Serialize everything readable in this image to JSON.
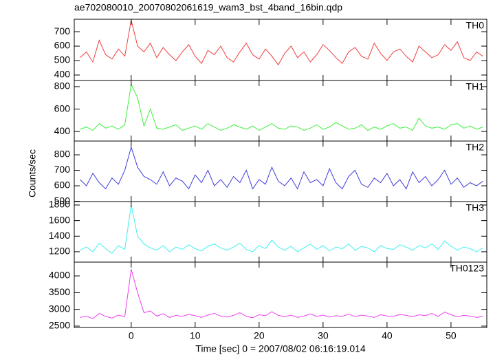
{
  "chart_data": [
    {
      "type": "line",
      "title": "ae702080010_20070802061619_wam3_bst_4band_16bin.qdp",
      "x": [
        -8,
        -7,
        -6,
        -5,
        -4,
        -3,
        -2,
        -1,
        0,
        1,
        2,
        3,
        4,
        5,
        6,
        7,
        8,
        9,
        10,
        11,
        12,
        13,
        14,
        15,
        16,
        17,
        18,
        19,
        20,
        21,
        22,
        23,
        24,
        25,
        26,
        27,
        28,
        29,
        30,
        31,
        32,
        33,
        34,
        35,
        36,
        37,
        38,
        39,
        40,
        41,
        42,
        43,
        44,
        45,
        46,
        47,
        48,
        49,
        50,
        51,
        52,
        53,
        54,
        55
      ],
      "series": [
        {
          "name": "TH0",
          "color": "#f03c3c",
          "values": [
            520,
            560,
            490,
            640,
            540,
            510,
            580,
            530,
            780,
            600,
            560,
            620,
            520,
            590,
            540,
            500,
            560,
            610,
            530,
            480,
            570,
            540,
            600,
            520,
            490,
            560,
            620,
            540,
            510,
            580,
            530,
            470,
            550,
            600,
            520,
            560,
            490,
            540,
            610,
            570,
            520,
            480,
            560,
            590,
            530,
            510,
            620,
            550,
            500,
            560,
            580,
            530,
            490,
            600,
            560,
            520,
            540,
            610,
            570,
            630,
            520,
            500,
            560,
            530
          ]
        }
      ],
      "xlim": [
        -8.9,
        55.6
      ],
      "xticks": [
        0,
        10,
        20,
        30,
        40,
        50
      ],
      "ylim": [
        362,
        786
      ],
      "yticks": [
        400,
        500,
        600,
        700
      ]
    },
    {
      "type": "line",
      "x": [
        -8,
        -7,
        -6,
        -5,
        -4,
        -3,
        -2,
        -1,
        0,
        1,
        2,
        3,
        4,
        5,
        6,
        7,
        8,
        9,
        10,
        11,
        12,
        13,
        14,
        15,
        16,
        17,
        18,
        19,
        20,
        21,
        22,
        23,
        24,
        25,
        26,
        27,
        28,
        29,
        30,
        31,
        32,
        33,
        34,
        35,
        36,
        37,
        38,
        39,
        40,
        41,
        42,
        43,
        44,
        45,
        46,
        47,
        48,
        49,
        50,
        51,
        52,
        53,
        54,
        55
      ],
      "series": [
        {
          "name": "TH1",
          "color": "#3cf03c",
          "values": [
            420,
            440,
            410,
            470,
            430,
            450,
            420,
            460,
            820,
            700,
            450,
            600,
            430,
            420,
            440,
            460,
            410,
            430,
            450,
            420,
            470,
            440,
            410,
            430,
            460,
            440,
            420,
            450,
            410,
            440,
            470,
            430,
            420,
            450,
            440,
            410,
            430,
            460,
            420,
            440,
            480,
            450,
            420,
            430,
            460,
            410,
            440,
            420,
            450,
            470,
            430,
            440,
            410,
            520,
            450,
            430,
            440,
            420,
            460,
            470,
            430,
            450,
            420,
            440
          ]
        }
      ],
      "xlim": [
        -8.9,
        55.6
      ],
      "xticks": [
        0,
        10,
        20,
        30,
        40,
        50
      ],
      "ylim": [
        315,
        855
      ],
      "yticks": [
        400,
        600,
        800
      ]
    },
    {
      "type": "line",
      "ylabel": "Counts/sec",
      "x": [
        -8,
        -7,
        -6,
        -5,
        -4,
        -3,
        -2,
        -1,
        0,
        1,
        2,
        3,
        4,
        5,
        6,
        7,
        8,
        9,
        10,
        11,
        12,
        13,
        14,
        15,
        16,
        17,
        18,
        19,
        20,
        21,
        22,
        23,
        24,
        25,
        26,
        27,
        28,
        29,
        30,
        31,
        32,
        33,
        34,
        35,
        36,
        37,
        38,
        39,
        40,
        41,
        42,
        43,
        44,
        45,
        46,
        47,
        48,
        49,
        50,
        51,
        52,
        53,
        54,
        55
      ],
      "series": [
        {
          "name": "TH2",
          "color": "#3c3cdc",
          "values": [
            640,
            600,
            680,
            620,
            580,
            650,
            610,
            700,
            850,
            720,
            660,
            640,
            610,
            690,
            600,
            650,
            630,
            580,
            670,
            620,
            700,
            600,
            640,
            590,
            660,
            620,
            700,
            580,
            640,
            610,
            720,
            630,
            600,
            650,
            580,
            690,
            620,
            640,
            600,
            710,
            620,
            580,
            660,
            700,
            610,
            590,
            650,
            620,
            680,
            600,
            640,
            580,
            690,
            620,
            660,
            600,
            640,
            700,
            610,
            650,
            590,
            620,
            600,
            630
          ]
        }
      ],
      "xlim": [
        -8.9,
        55.6
      ],
      "xticks": [
        0,
        10,
        20,
        30,
        40,
        50
      ],
      "ylim": [
        498,
        889
      ],
      "yticks": [
        500,
        600,
        700,
        800
      ]
    },
    {
      "type": "line",
      "x": [
        -8,
        -7,
        -6,
        -5,
        -4,
        -3,
        -2,
        -1,
        0,
        1,
        2,
        3,
        4,
        5,
        6,
        7,
        8,
        9,
        10,
        11,
        12,
        13,
        14,
        15,
        16,
        17,
        18,
        19,
        20,
        21,
        22,
        23,
        24,
        25,
        26,
        27,
        28,
        29,
        30,
        31,
        32,
        33,
        34,
        35,
        36,
        37,
        38,
        39,
        40,
        41,
        42,
        43,
        44,
        45,
        46,
        47,
        48,
        49,
        50,
        51,
        52,
        53,
        54,
        55
      ],
      "series": [
        {
          "name": "TH3",
          "color": "#3cf0f0",
          "values": [
            1220,
            1260,
            1200,
            1310,
            1240,
            1180,
            1280,
            1230,
            1800,
            1400,
            1300,
            1250,
            1220,
            1280,
            1200,
            1260,
            1230,
            1290,
            1240,
            1210,
            1270,
            1300,
            1250,
            1220,
            1260,
            1310,
            1230,
            1200,
            1280,
            1240,
            1350,
            1260,
            1220,
            1270,
            1200,
            1250,
            1300,
            1230,
            1280,
            1210,
            1260,
            1240,
            1300,
            1220,
            1270,
            1250,
            1200,
            1280,
            1240,
            1230,
            1290,
            1260,
            1220,
            1280,
            1250,
            1300,
            1230,
            1340,
            1270,
            1220,
            1260,
            1240,
            1200,
            1250
          ]
        }
      ],
      "xlim": [
        -8.9,
        55.6
      ],
      "xticks": [
        0,
        10,
        20,
        30,
        40,
        50
      ],
      "ylim": [
        1067,
        1844
      ],
      "yticks": [
        1200,
        1400,
        1600,
        1800
      ]
    },
    {
      "type": "line",
      "xlabel": "Time [sec] 0 = 2007/08/02 06:16:19.014",
      "x": [
        -8,
        -7,
        -6,
        -5,
        -4,
        -3,
        -2,
        -1,
        0,
        1,
        2,
        3,
        4,
        5,
        6,
        7,
        8,
        9,
        10,
        11,
        12,
        13,
        14,
        15,
        16,
        17,
        18,
        19,
        20,
        21,
        22,
        23,
        24,
        25,
        26,
        27,
        28,
        29,
        30,
        31,
        32,
        33,
        34,
        35,
        36,
        37,
        38,
        39,
        40,
        41,
        42,
        43,
        44,
        45,
        46,
        47,
        48,
        49,
        50,
        51,
        52,
        53,
        54,
        55
      ],
      "series": [
        {
          "name": "TH0123",
          "color": "#f03cf0",
          "values": [
            2760,
            2800,
            2720,
            2880,
            2790,
            2740,
            2830,
            2780,
            4200,
            3500,
            2900,
            2950,
            2800,
            2870,
            2760,
            2820,
            2790,
            2850,
            2810,
            2760,
            2830,
            2880,
            2800,
            2770,
            2820,
            2900,
            2790,
            2750,
            2840,
            2810,
            2930,
            2820,
            2780,
            2830,
            2760,
            2800,
            2860,
            2790,
            2830,
            2770,
            2810,
            2790,
            2860,
            2780,
            2830,
            2800,
            2760,
            2840,
            2800,
            2790,
            2850,
            2820,
            2780,
            2840,
            2810,
            2880,
            2790,
            2920,
            2840,
            2780,
            2820,
            2800,
            2760,
            2790
          ]
        }
      ],
      "xlim": [
        -8.9,
        55.6
      ],
      "xticks": [
        0,
        10,
        20,
        30,
        40,
        50
      ],
      "ylim": [
        2459,
        4412
      ],
      "yticks": [
        2500,
        3000,
        3500,
        4000
      ]
    }
  ]
}
